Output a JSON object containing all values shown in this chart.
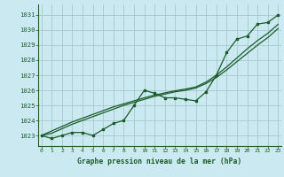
{
  "title": "Graphe pression niveau de la mer (hPa)",
  "background_color": "#cbe9f0",
  "grid_color": "#a8c8cc",
  "line_color": "#1a5c2a",
  "border_color": "#1a5c2a",
  "x_ticks": [
    0,
    1,
    2,
    3,
    4,
    5,
    6,
    7,
    8,
    9,
    10,
    11,
    12,
    13,
    14,
    15,
    16,
    17,
    18,
    19,
    20,
    21,
    22,
    23
  ],
  "ylim": [
    1022.3,
    1031.7
  ],
  "xlim": [
    -0.3,
    23.3
  ],
  "y_ticks": [
    1023,
    1024,
    1025,
    1026,
    1027,
    1028,
    1029,
    1030,
    1031
  ],
  "series_main": [
    1023.0,
    1022.8,
    1023.0,
    1023.2,
    1023.2,
    1023.0,
    1023.4,
    1023.8,
    1024.0,
    1025.0,
    1026.0,
    1025.8,
    1025.5,
    1025.5,
    1025.4,
    1025.3,
    1025.9,
    1027.0,
    1028.5,
    1029.4,
    1029.6,
    1030.4,
    1030.5,
    1031.0
  ],
  "series_smooth1": [
    1023.0,
    1023.15,
    1023.45,
    1023.75,
    1024.0,
    1024.25,
    1024.5,
    1024.75,
    1025.0,
    1025.2,
    1025.4,
    1025.6,
    1025.75,
    1025.9,
    1026.0,
    1026.15,
    1026.45,
    1026.85,
    1027.35,
    1027.9,
    1028.45,
    1029.0,
    1029.5,
    1030.1
  ],
  "series_smooth2": [
    1023.0,
    1023.3,
    1023.6,
    1023.9,
    1024.15,
    1024.4,
    1024.65,
    1024.9,
    1025.1,
    1025.3,
    1025.5,
    1025.68,
    1025.83,
    1025.97,
    1026.08,
    1026.22,
    1026.55,
    1027.0,
    1027.55,
    1028.15,
    1028.75,
    1029.3,
    1029.78,
    1030.38
  ]
}
